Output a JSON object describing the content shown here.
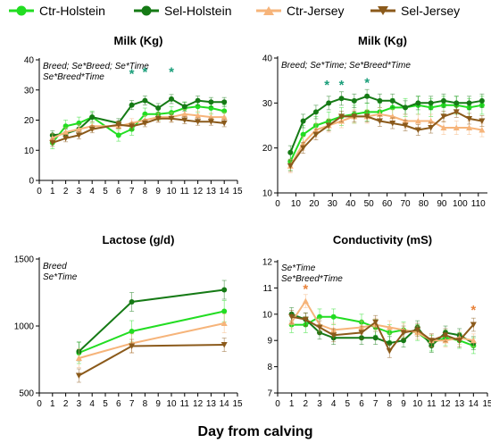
{
  "legend": [
    {
      "name": "Ctr-Holstein",
      "color": "#22dd22"
    },
    {
      "name": "Sel-Holstein",
      "color": "#157a15"
    },
    {
      "name": "Ctr-Jersey",
      "color": "#f6b47a"
    },
    {
      "name": "Sel-Jersey",
      "color": "#8b5a1b"
    }
  ],
  "x_axis_label": "Day from calving",
  "chart_data": [
    {
      "type": "line",
      "title": "Milk (Kg)",
      "annotations": [
        "Breed; Se*Breed; Se*Time",
        "Se*Breed*Time"
      ],
      "x_ticks": [
        0,
        1,
        2,
        3,
        4,
        5,
        6,
        7,
        8,
        9,
        10,
        11,
        12,
        13,
        14,
        15
      ],
      "xlim": [
        0,
        15
      ],
      "ylim": [
        0,
        40
      ],
      "y_ticks": [
        0,
        10,
        20,
        30,
        40
      ],
      "significance": [
        {
          "x": 7,
          "y": 34,
          "symbol": "*",
          "color": "#1a9e7a"
        },
        {
          "x": 8,
          "y": 34.5,
          "symbol": "*",
          "color": "#1a9e7a"
        },
        {
          "x": 10,
          "y": 34.5,
          "symbol": "*",
          "color": "#1a9e7a"
        }
      ],
      "series": [
        {
          "name": "Ctr-Holstein",
          "x": [
            1,
            2,
            3,
            4,
            6,
            7,
            8,
            9,
            10,
            11,
            12,
            13,
            14
          ],
          "values": [
            12.5,
            18,
            19,
            21,
            15,
            17,
            22,
            22,
            22.5,
            24,
            24.5,
            24,
            23
          ],
          "err": 2
        },
        {
          "name": "Sel-Holstein",
          "x": [
            1,
            2,
            3,
            4,
            6,
            7,
            8,
            9,
            10,
            11,
            12,
            13,
            14
          ],
          "values": [
            15,
            15.5,
            17,
            21,
            19,
            25,
            26.5,
            24,
            27,
            24.5,
            26.5,
            26,
            26
          ],
          "err": 1.5
        },
        {
          "name": "Ctr-Jersey",
          "x": [
            1,
            2,
            3,
            4,
            6,
            7,
            8,
            9,
            10,
            11,
            12,
            13,
            14
          ],
          "values": [
            14,
            16,
            17,
            18,
            18,
            19,
            20,
            21,
            21,
            22,
            21.5,
            21,
            21
          ],
          "err": 1.5
        },
        {
          "name": "Sel-Jersey",
          "x": [
            1,
            2,
            3,
            4,
            6,
            7,
            8,
            9,
            10,
            11,
            12,
            13,
            14
          ],
          "values": [
            12.5,
            14,
            15,
            17,
            18.5,
            18,
            19,
            20.5,
            20.5,
            20,
            19.5,
            19.5,
            19
          ],
          "err": 1.2
        }
      ]
    },
    {
      "type": "line",
      "title": "Milk (Kg)",
      "annotations": [
        "Breed; Se*Time; Se*Breed*Time"
      ],
      "x_ticks": [
        0,
        10,
        20,
        30,
        40,
        50,
        60,
        70,
        80,
        90,
        100,
        110
      ],
      "xlim": [
        0,
        115
      ],
      "ylim": [
        10,
        40
      ],
      "y_ticks": [
        10,
        20,
        30,
        40
      ],
      "significance": [
        {
          "x": 27,
          "y": 33,
          "symbol": "*",
          "color": "#1a9e7a"
        },
        {
          "x": 35,
          "y": 33,
          "symbol": "*",
          "color": "#1a9e7a"
        },
        {
          "x": 49,
          "y": 33.5,
          "symbol": "*",
          "color": "#1a9e7a"
        }
      ],
      "series": [
        {
          "name": "Ctr-Holstein",
          "x": [
            7,
            14,
            21,
            28,
            35,
            42,
            49,
            56,
            63,
            70,
            77,
            84,
            91,
            98,
            105,
            112
          ],
          "values": [
            17,
            23,
            25,
            26,
            27,
            27.5,
            28,
            28,
            29,
            29,
            29.5,
            29,
            29.5,
            29.5,
            29,
            29.5
          ],
          "err": 2
        },
        {
          "name": "Sel-Holstein",
          "x": [
            7,
            14,
            21,
            28,
            35,
            42,
            49,
            56,
            63,
            70,
            77,
            84,
            91,
            98,
            105,
            112
          ],
          "values": [
            19,
            26,
            28,
            30,
            31,
            30.5,
            31.5,
            30.5,
            30.5,
            29,
            30,
            30,
            30.5,
            30,
            30,
            30.5
          ],
          "err": 1.5
        },
        {
          "name": "Ctr-Jersey",
          "x": [
            7,
            14,
            21,
            28,
            35,
            42,
            49,
            56,
            63,
            70,
            77,
            84,
            91,
            98,
            105,
            112
          ],
          "values": [
            16,
            21,
            24,
            25,
            26,
            27,
            27,
            27.5,
            27,
            26,
            26,
            26,
            24.5,
            24.5,
            24.5,
            24
          ],
          "err": 1.5
        },
        {
          "name": "Sel-Jersey",
          "x": [
            7,
            14,
            21,
            28,
            35,
            42,
            49,
            56,
            63,
            70,
            77,
            84,
            91,
            98,
            105,
            112
          ],
          "values": [
            16,
            20,
            23,
            25,
            27,
            27,
            27,
            26,
            25.5,
            25,
            24,
            24.5,
            27,
            28,
            26.5,
            26
          ],
          "err": 1.2
        }
      ]
    },
    {
      "type": "line",
      "title": "Lactose (g/d)",
      "annotations": [
        "Breed",
        "Se*Time"
      ],
      "x_ticks": [
        0,
        1,
        2,
        3,
        4,
        5,
        6,
        7,
        8,
        9,
        10,
        11,
        12,
        13,
        14,
        15
      ],
      "xlim": [
        0,
        15
      ],
      "ylim": [
        500,
        1500
      ],
      "y_ticks": [
        500,
        1000,
        1500
      ],
      "significance": [],
      "series": [
        {
          "name": "Ctr-Holstein",
          "x": [
            3,
            7,
            14
          ],
          "values": [
            800,
            960,
            1110
          ],
          "err": 80
        },
        {
          "name": "Sel-Holstein",
          "x": [
            3,
            7,
            14
          ],
          "values": [
            810,
            1180,
            1270
          ],
          "err": 70
        },
        {
          "name": "Ctr-Jersey",
          "x": [
            3,
            7,
            14
          ],
          "values": [
            760,
            870,
            1020
          ],
          "err": 70
        },
        {
          "name": "Sel-Jersey",
          "x": [
            3,
            7,
            14
          ],
          "values": [
            630,
            850,
            860
          ],
          "err": 50
        }
      ]
    },
    {
      "type": "line",
      "title": "Conductivity (mS)",
      "annotations": [
        "Se*Time",
        "Se*Breed*Time"
      ],
      "x_ticks": [
        0,
        1,
        2,
        3,
        4,
        5,
        6,
        7,
        8,
        9,
        10,
        11,
        12,
        13,
        14,
        15
      ],
      "xlim": [
        0,
        15
      ],
      "ylim": [
        7,
        12
      ],
      "y_ticks": [
        7,
        8,
        9,
        10,
        11,
        12
      ],
      "significance": [
        {
          "x": 2,
          "y": 10.8,
          "symbol": "*",
          "color": "#e8823a"
        },
        {
          "x": 14,
          "y": 10.0,
          "symbol": "*",
          "color": "#e8823a"
        }
      ],
      "series": [
        {
          "name": "Ctr-Holstein",
          "x": [
            1,
            2,
            3,
            4,
            6,
            7,
            8,
            9,
            10,
            11,
            12,
            13,
            14
          ],
          "values": [
            9.6,
            9.6,
            9.9,
            9.9,
            9.7,
            9.5,
            9.3,
            9.4,
            9.3,
            8.9,
            9.1,
            9.0,
            8.8
          ],
          "err": 0.3
        },
        {
          "name": "Sel-Holstein",
          "x": [
            1,
            2,
            3,
            4,
            6,
            7,
            8,
            9,
            10,
            11,
            12,
            13,
            14
          ],
          "values": [
            10.0,
            9.8,
            9.3,
            9.1,
            9.1,
            9.1,
            8.9,
            9.0,
            9.5,
            8.8,
            9.3,
            9.2,
            8.9
          ],
          "err": 0.25
        },
        {
          "name": "Ctr-Jersey",
          "x": [
            1,
            2,
            3,
            4,
            6,
            7,
            8,
            9,
            10,
            11,
            12,
            13,
            14
          ],
          "values": [
            9.7,
            10.5,
            9.6,
            9.4,
            9.5,
            9.6,
            9.5,
            9.4,
            9.3,
            9.0,
            9.0,
            9.1,
            9.0
          ],
          "err": 0.25
        },
        {
          "name": "Sel-Jersey",
          "x": [
            1,
            2,
            3,
            4,
            6,
            7,
            8,
            9,
            10,
            11,
            12,
            13,
            14
          ],
          "values": [
            9.9,
            9.8,
            9.5,
            9.2,
            9.3,
            9.7,
            8.6,
            9.3,
            9.4,
            9.0,
            9.2,
            9.0,
            9.6
          ],
          "err": 0.25
        }
      ]
    }
  ]
}
